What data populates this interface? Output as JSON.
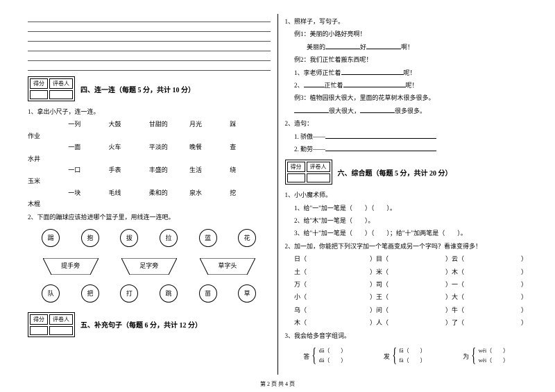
{
  "footer": "第 2 页 共 4 页",
  "left": {
    "score": {
      "h1": "得分",
      "h2": "评卷人"
    },
    "s4": {
      "title": "四、连一连（每题 5 分，共计 10 分）",
      "q1": "1、拿出小尺子，连一连。",
      "grid": [
        [
          "",
          "一列",
          "大鼓",
          "甘甜的",
          "月光",
          "踩"
        ],
        [
          "作业",
          "",
          "",
          "",
          "",
          ""
        ],
        [
          "",
          "一面",
          "火车",
          "平淡的",
          "晚餐",
          "查"
        ],
        [
          "水井",
          "",
          "",
          "",
          "",
          ""
        ],
        [
          "",
          "一口",
          "手表",
          "丰盛的",
          "生活",
          "绕"
        ],
        [
          "玉米",
          "",
          "",
          "",
          "",
          ""
        ],
        [
          "",
          "一块",
          "毛线",
          "柔和的",
          "泉水",
          "挖"
        ],
        [
          "木棍",
          "",
          "",
          "",
          "",
          ""
        ]
      ],
      "q2": "2、下面的蹦球应该拾进哪个篮子里，用线连一连吧。",
      "circles1": [
        "踢",
        "抱",
        "拔",
        "拉",
        "蓝",
        "花"
      ],
      "traps": [
        "提手旁",
        "足字旁",
        "草字头"
      ],
      "circles2": [
        "队",
        "把",
        "打",
        "跳",
        "苗",
        "草"
      ]
    },
    "s5": {
      "title": "五、补充句子（每题 6 分，共计 12 分）"
    }
  },
  "right": {
    "q1": {
      "title": "1、照样子，写句子。",
      "ex1": "例1：美丽的小路好亮啊！",
      "ex1_blank": "美丽的______好______啊！",
      "ex2": "例2：我们正忙着搬东西呢！",
      "l1_pre": "1、李老师正忙着",
      "l1_suf": "呢！",
      "l2_pre": "2、",
      "l2_mid": "正忙着",
      "l2_suf": "呢！",
      "ex3": "例3：植物园很大很大，里面的花草树木很多很多。",
      "l3_mid": "很大很大，",
      "l3_suf": "很多很多。"
    },
    "q2": {
      "title": "2、造句：",
      "a": "1. 骄傲——",
      "b": "2. 勤劳——"
    },
    "score": {
      "h1": "得分",
      "h2": "评卷人"
    },
    "s6": {
      "title": "六、综合题（每题 5 分，共计 20 分）",
      "q1": "1、小小魔术师。",
      "q1a": "1、给\"一\"加一笔是（　　）（　　）。",
      "q1b": "2、给\"木\"加一笔是（　　）。",
      "q1c": "3、给\"十\"加一笔是（　　）（　　）；给\"十\"加两笔是（　　）。",
      "q2": "2、加一加，你能把下列汉字加一个笔画变成另一个字吗？看谁变得多！",
      "chars": [
        [
          "日（",
          "）目（",
          "）云（",
          "）"
        ],
        [
          "土（",
          "）米（",
          "）木（",
          "）"
        ],
        [
          "万（",
          "）司（",
          "）一（",
          "）"
        ],
        [
          "小（",
          "）王（",
          "）大（",
          "）"
        ],
        [
          "乌（",
          "）问（",
          "）牛（",
          "）"
        ],
        [
          "木（",
          "）人（",
          "）了（",
          "）"
        ]
      ],
      "q3": "3、我会给多音字组词。",
      "groups": [
        {
          "char": "答",
          "p1": "dā（",
          "p2": "dá（"
        },
        {
          "char": "发",
          "p1": "fā（",
          "p2": "fà（"
        },
        {
          "char": "为",
          "p1": "wéi（",
          "p2": "wèi（"
        }
      ]
    }
  }
}
